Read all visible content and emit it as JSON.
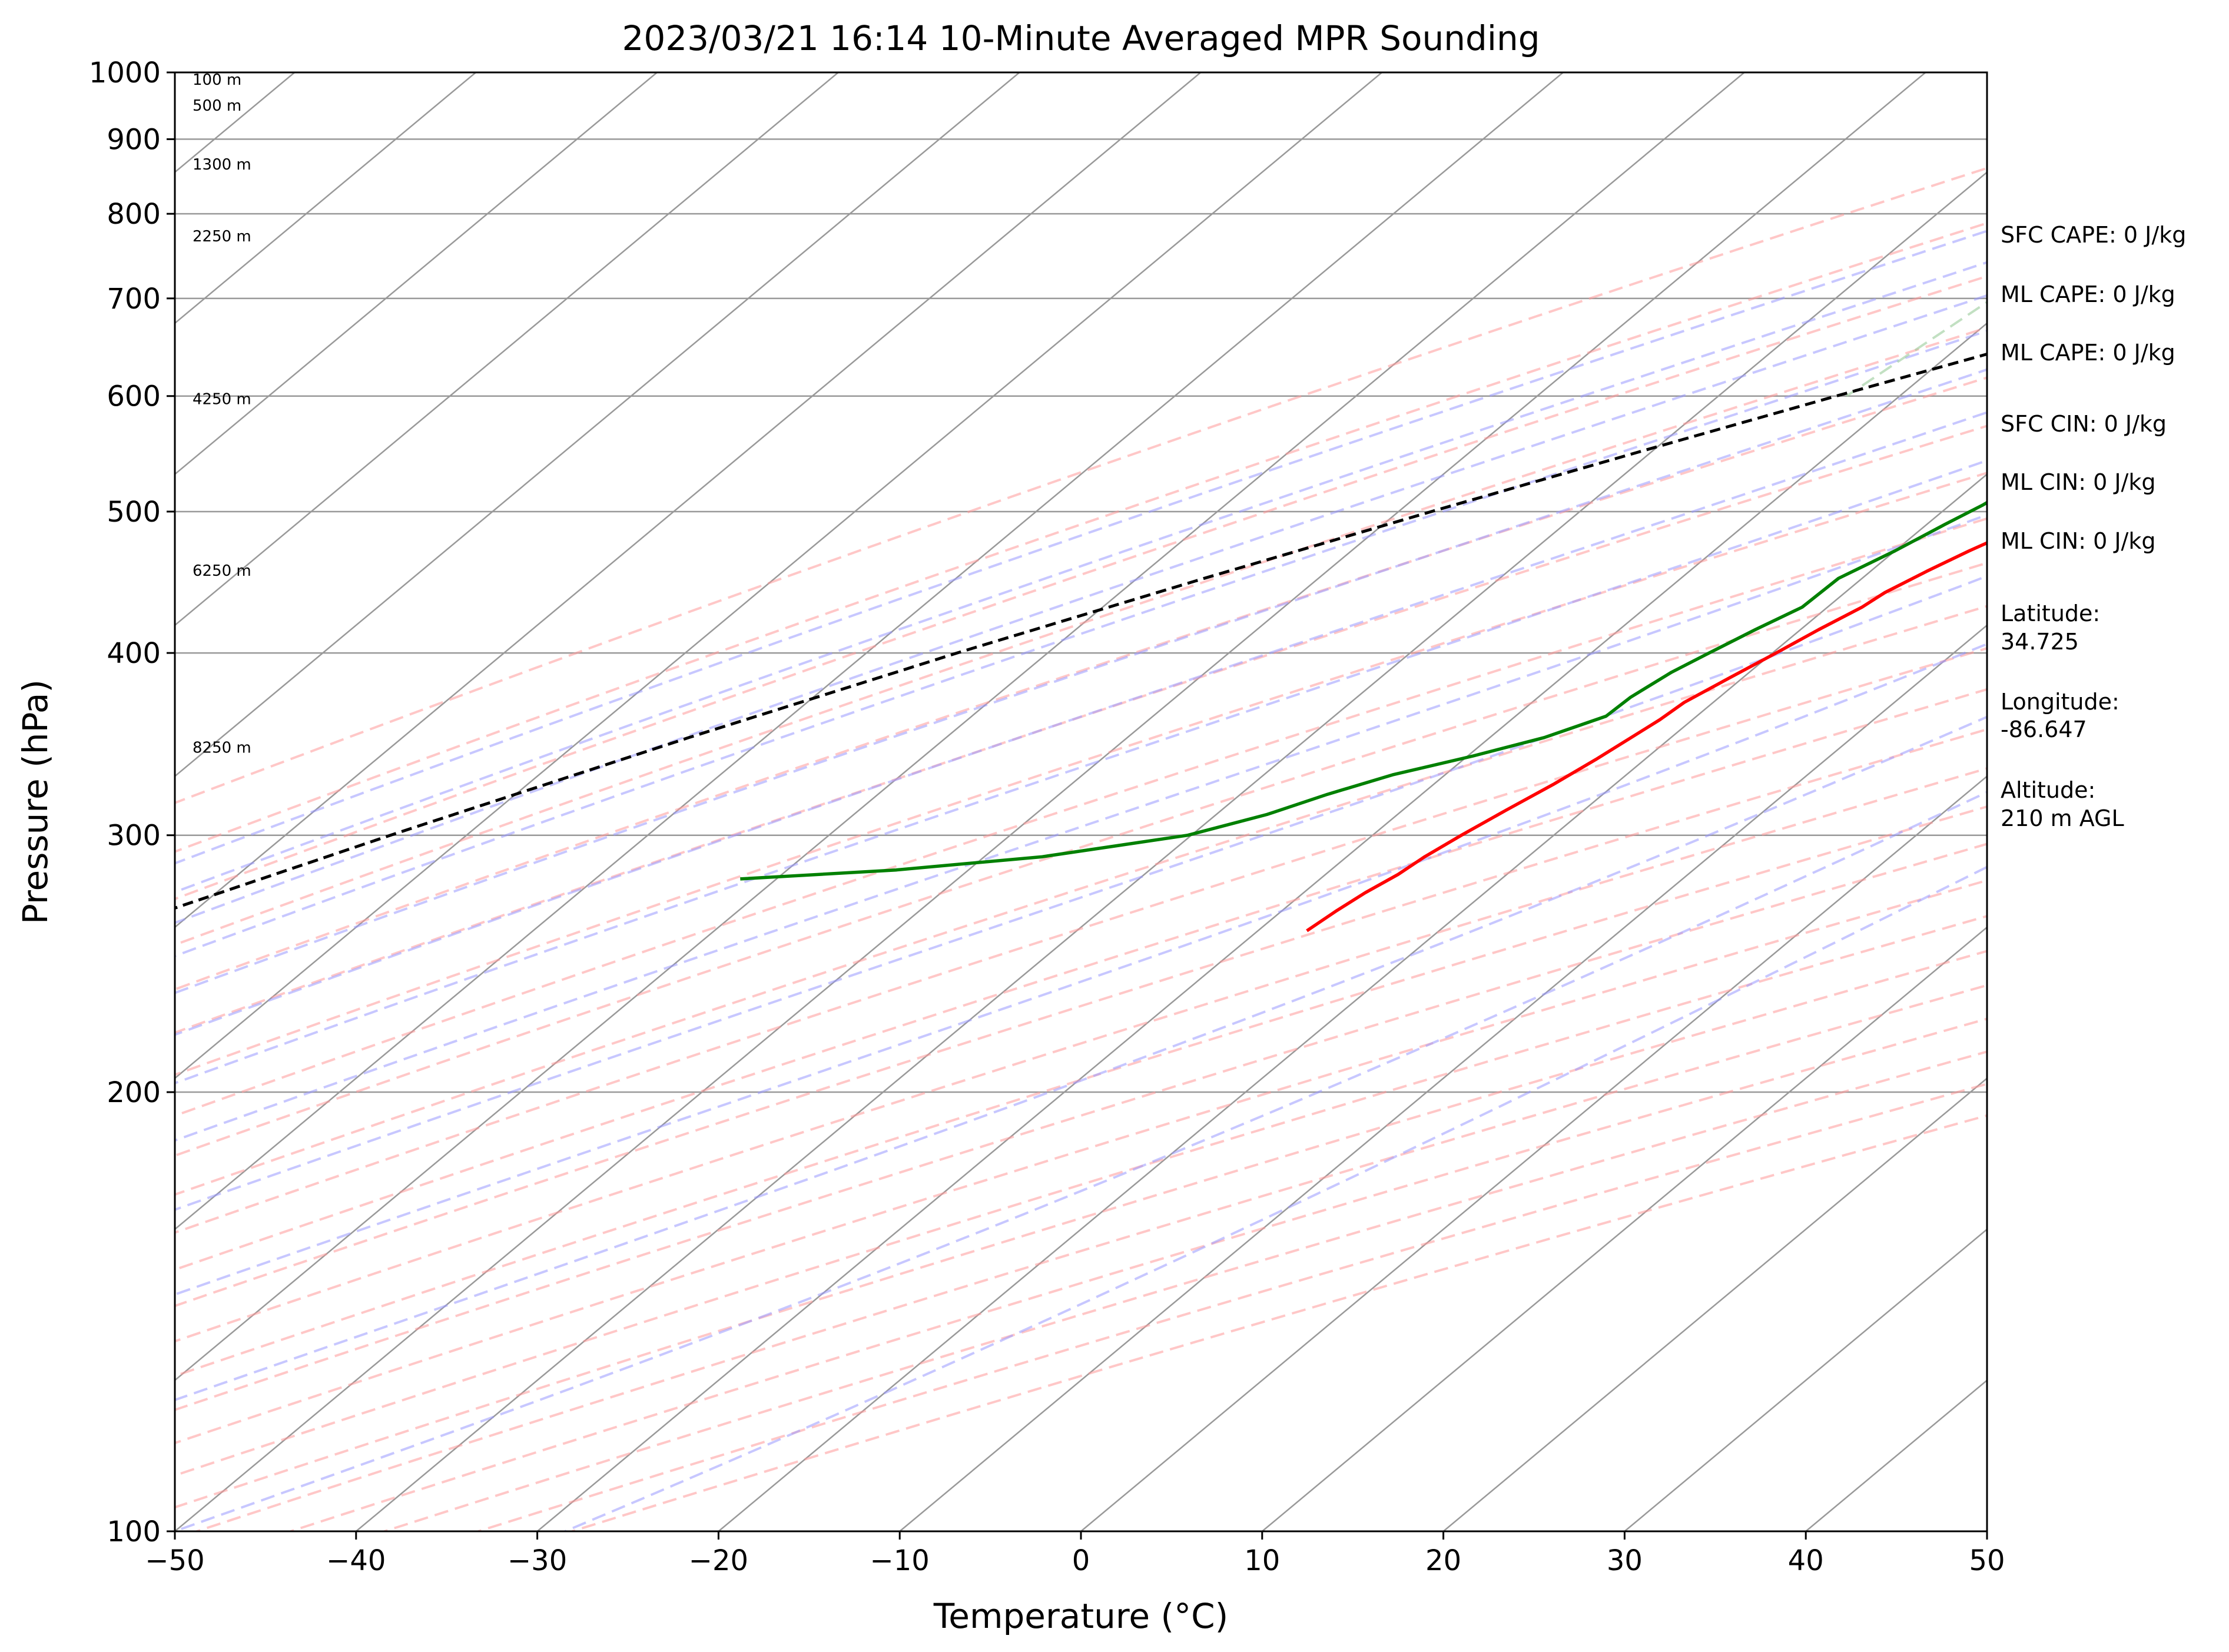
{
  "chart_data": {
    "type": "line",
    "title": "2023/03/21 16:14 10-Minute Averaged MPR Sounding",
    "xlabel": "Temperature (°C)",
    "ylabel": "Pressure (hPa)",
    "xlim": [
      -50,
      50
    ],
    "ylim": [
      1000,
      100
    ],
    "y_scale": "log",
    "x_ticks": [
      "−50",
      "−40",
      "−30",
      "−20",
      "−10",
      "0",
      "10",
      "20",
      "30",
      "40",
      "50"
    ],
    "y_ticks": [
      "100",
      "200",
      "300",
      "400",
      "500",
      "600",
      "700",
      "800",
      "900",
      "1000"
    ],
    "grid": true,
    "colors": {
      "temperature": "#ff0000",
      "dewpoint": "#008000",
      "parcel": "#000000",
      "isotherm": "#999999",
      "dry_adiabat": "#ff9999",
      "moist_adiabat": "#9999ff",
      "mixing_ratio": "#99cc99"
    },
    "series": [
      {
        "key": "temperature",
        "pressure": [
          1000,
          990,
          975,
          960,
          950,
          930,
          920,
          905,
          895,
          880,
          870,
          860,
          845,
          830,
          815,
          800,
          790,
          780,
          770,
          760,
          745,
          730,
          715,
          700,
          690,
          680,
          670,
          660,
          650,
          640,
          625,
          610,
          600,
          590,
          575,
          560,
          550,
          535,
          520,
          505,
          490,
          470,
          455,
          440,
          430,
          415,
          400,
          385,
          370,
          360,
          350,
          338,
          325,
          312,
          300,
          290,
          282,
          274,
          266,
          258
        ],
        "temp": [
          12.5,
          10.0,
          8.6,
          7.6,
          6.6,
          5.6,
          5.6,
          5.6,
          5.0,
          4.4,
          3.6,
          3.6,
          3.0,
          3.0,
          2.4,
          2.3,
          2.3,
          1.8,
          0.8,
          0.3,
          -0.3,
          -0.8,
          -1.3,
          -1.8,
          -2.3,
          -3.0,
          -3.8,
          -4.8,
          -5.8,
          -6.4,
          -6.8,
          -7.3,
          -7.8,
          -8.4,
          -9.4,
          -10.4,
          -10.9,
          -11.8,
          -12.8,
          -13.6,
          -14.4,
          -15.9,
          -16.9,
          -17.8,
          -18.1,
          -19.0,
          -19.8,
          -20.7,
          -21.6,
          -21.8,
          -22.2,
          -22.7,
          -23.4,
          -24.3,
          -25.1,
          -25.7,
          -26.0,
          -26.6,
          -27.0,
          -27.3
        ]
      },
      {
        "key": "dewpoint",
        "pressure": [
          1000,
          995,
          985,
          975,
          965,
          960,
          955,
          945,
          935,
          920,
          905,
          895,
          880,
          865,
          855,
          845,
          835,
          820,
          810,
          800,
          790,
          775,
          760,
          745,
          730,
          715,
          700,
          690,
          680,
          665,
          650,
          635,
          620,
          605,
          590,
          575,
          560,
          545,
          535,
          520,
          505,
          490,
          470,
          450,
          430,
          415,
          400,
          388,
          373,
          362,
          350,
          340,
          330,
          320,
          310,
          300,
          290,
          284,
          280
        ],
        "dewp": [
          -8.0,
          -10.5,
          -12.8,
          -15.3,
          -17.0,
          -16.6,
          -15.5,
          -14.0,
          -10.3,
          -9.0,
          -5.4,
          -4.8,
          -3.8,
          -4.0,
          -3.0,
          -4.1,
          -0.7,
          -0.7,
          -1.0,
          -0.4,
          -1.4,
          -4.5,
          -7.2,
          -7.9,
          -8.4,
          -8.2,
          -8.6,
          -9.0,
          -8.6,
          -8.1,
          -7.5,
          -8.0,
          -9.0,
          -11.0,
          -13.1,
          -14.8,
          -17.0,
          -17.5,
          -17.7,
          -17.7,
          -18.2,
          -19.0,
          -20.0,
          -21.3,
          -21.4,
          -22.5,
          -23.5,
          -24.3,
          -24.9,
          -25.0,
          -27.0,
          -29.7,
          -32.9,
          -35.2,
          -37.2,
          -40.2,
          -46.8,
          -54.0,
          -62.0
        ]
      },
      {
        "key": "parcel",
        "pressure": [
          1000,
          950,
          900,
          850,
          800,
          750,
          700,
          650,
          600,
          550,
          500,
          450,
          400,
          350,
          300,
          260
        ],
        "temp": [
          12.5,
          8.0,
          3.0,
          -2.5,
          -8.0,
          -14.2,
          -20.3,
          -26.8,
          -33.5,
          -40.6,
          -48.2,
          -56.3,
          -65.0,
          -74.2,
          -84.2,
          -93.0
        ]
      }
    ],
    "height_labels": [
      "8250 m",
      "6250 m",
      "4250 m",
      "2250 m",
      "1300 m",
      "500 m",
      "100 m"
    ],
    "annotations": [
      "SFC CAPE: 0 J/kg",
      "ML CAPE: 0 J/kg",
      "ML CAPE: 0 J/kg",
      "SFC CIN: 0 J/kg",
      "ML CIN: 0 J/kg",
      "ML CIN: 0 J/kg",
      "Latitude:",
      "34.725",
      "Longitude:",
      "-86.647",
      "Altitude:",
      "210 m AGL"
    ]
  }
}
